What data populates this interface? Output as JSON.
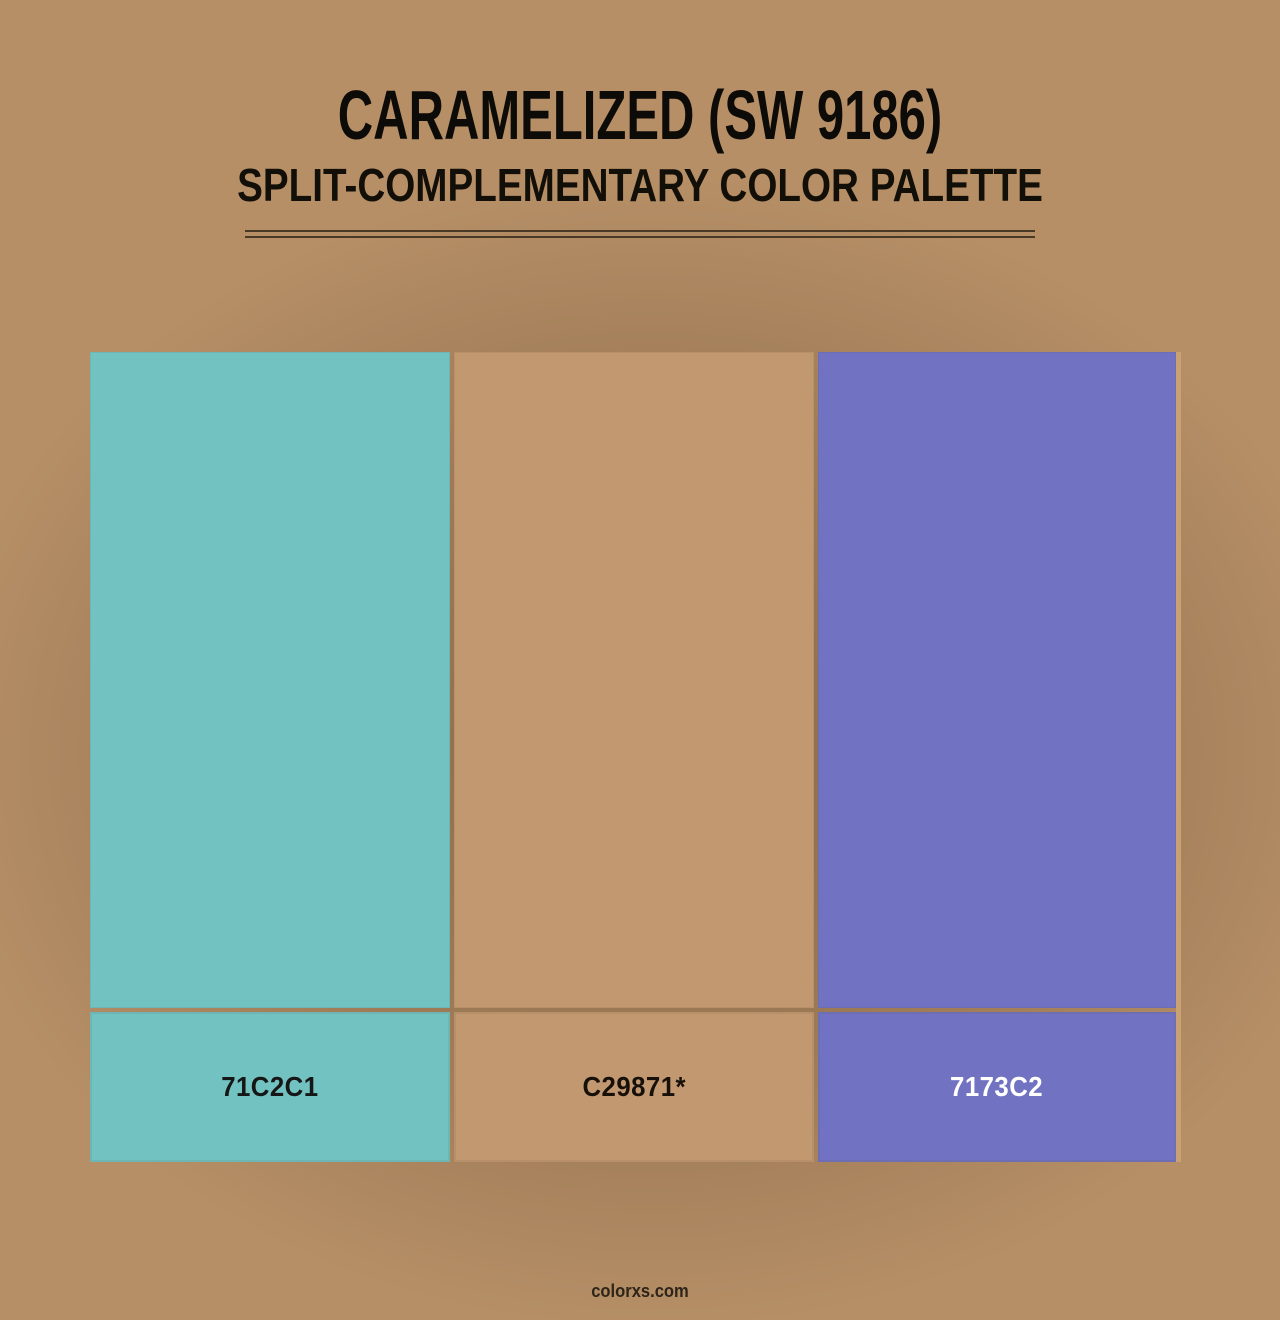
{
  "page": {
    "title": "CARAMELIZED (SW 9186)",
    "subtitle": "SPLIT-COMPLEMENTARY COLOR PALETTE",
    "footer_watermark": "colorxs.com"
  },
  "palette": {
    "type": "split-complementary",
    "swatches": [
      {
        "hex_label": "71C2C1",
        "color": "#71C2C1",
        "label_color": "#161616"
      },
      {
        "hex_label": "C29871*",
        "color": "#C29871",
        "label_color": "#171008"
      },
      {
        "hex_label": "7173C2",
        "color": "#7173C2",
        "label_color": "#FFFFFF"
      }
    ]
  },
  "colors": {
    "background_base": "#B68F66",
    "vignette_shadow": "#3D2918",
    "rule": "#4A3926",
    "panel_edge": "#C9A173",
    "title_text": "#0D0B08",
    "subtitle_text": "#120E08",
    "footer_text": "#2E2419"
  }
}
